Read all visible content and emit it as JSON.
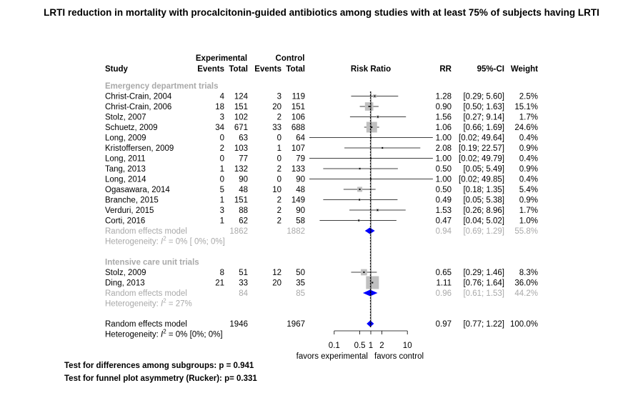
{
  "chart_data": {
    "type": "forest",
    "title": "LRTI reduction in mortality with procalcitonin-guided antibiotics among studies with at least 75% of subjects having LRTI",
    "group_labels": {
      "experimental": "Experimental",
      "control": "Control"
    },
    "columns": {
      "study": "Study",
      "exp_events": "Events",
      "exp_total": "Total",
      "ctrl_events": "Events",
      "ctrl_total": "Total",
      "plot": "Risk Ratio",
      "rr": "RR",
      "ci": "95%-CI",
      "weight": "Weight"
    },
    "scale": "log",
    "xlim": [
      0.1,
      10
    ],
    "xticks": [
      {
        "value": 0.1,
        "label": "0.1"
      },
      {
        "value": 0.5,
        "label": "0.5"
      },
      {
        "value": 1,
        "label": "1"
      },
      {
        "value": 2,
        "label": "2"
      },
      {
        "value": 10,
        "label": "10"
      }
    ],
    "xlabel_left": "favors experimental",
    "xlabel_right": "favors control",
    "subgroups": [
      {
        "name": "Emergency department trials",
        "studies": [
          {
            "study": "Christ-Crain, 2004",
            "exp_events": "4",
            "exp_total": "124",
            "ctrl_events": "3",
            "ctrl_total": "119",
            "rr": 1.28,
            "lo": 0.29,
            "hi": 5.6,
            "rr_text": "1.28",
            "ci_text": "[0.29;  5.60]",
            "weight": 2.5,
            "weight_text": "2.5%"
          },
          {
            "study": "Christ-Crain, 2006",
            "exp_events": "18",
            "exp_total": "151",
            "ctrl_events": "20",
            "ctrl_total": "151",
            "rr": 0.9,
            "lo": 0.5,
            "hi": 1.63,
            "rr_text": "0.90",
            "ci_text": "[0.50;  1.63]",
            "weight": 15.1,
            "weight_text": "15.1%"
          },
          {
            "study": "Stolz, 2007",
            "exp_events": "3",
            "exp_total": "102",
            "ctrl_events": "2",
            "ctrl_total": "106",
            "rr": 1.56,
            "lo": 0.27,
            "hi": 9.14,
            "rr_text": "1.56",
            "ci_text": "[0.27;  9.14]",
            "weight": 1.7,
            "weight_text": "1.7%"
          },
          {
            "study": "Schuetz, 2009",
            "exp_events": "34",
            "exp_total": "671",
            "ctrl_events": "33",
            "ctrl_total": "688",
            "rr": 1.06,
            "lo": 0.66,
            "hi": 1.69,
            "rr_text": "1.06",
            "ci_text": "[0.66;  1.69]",
            "weight": 24.6,
            "weight_text": "24.6%"
          },
          {
            "study": "Long, 2009",
            "exp_events": "0",
            "exp_total": "63",
            "ctrl_events": "0",
            "ctrl_total": "64",
            "rr": 1.0,
            "lo": 0.02,
            "hi": 49.64,
            "rr_text": "1.00",
            "ci_text": "[0.02; 49.64]",
            "weight": 0.4,
            "weight_text": "0.4%"
          },
          {
            "study": "Kristoffersen, 2009",
            "exp_events": "2",
            "exp_total": "103",
            "ctrl_events": "1",
            "ctrl_total": "107",
            "rr": 2.08,
            "lo": 0.19,
            "hi": 22.57,
            "rr_text": "2.08",
            "ci_text": "[0.19; 22.57]",
            "weight": 0.9,
            "weight_text": "0.9%"
          },
          {
            "study": "Long, 2011",
            "exp_events": "0",
            "exp_total": "77",
            "ctrl_events": "0",
            "ctrl_total": "79",
            "rr": 1.0,
            "lo": 0.02,
            "hi": 49.79,
            "rr_text": "1.00",
            "ci_text": "[0.02; 49.79]",
            "weight": 0.4,
            "weight_text": "0.4%"
          },
          {
            "study": "Tang, 2013",
            "exp_events": "1",
            "exp_total": "132",
            "ctrl_events": "2",
            "ctrl_total": "133",
            "rr": 0.5,
            "lo": 0.05,
            "hi": 5.49,
            "rr_text": "0.50",
            "ci_text": "[0.05;  5.49]",
            "weight": 0.9,
            "weight_text": "0.9%"
          },
          {
            "study": "Long, 2014",
            "exp_events": "0",
            "exp_total": "90",
            "ctrl_events": "0",
            "ctrl_total": "90",
            "rr": 1.0,
            "lo": 0.02,
            "hi": 49.85,
            "rr_text": "1.00",
            "ci_text": "[0.02; 49.85]",
            "weight": 0.4,
            "weight_text": "0.4%"
          },
          {
            "study": "Ogasawara, 2014",
            "exp_events": "5",
            "exp_total": "48",
            "ctrl_events": "10",
            "ctrl_total": "48",
            "rr": 0.5,
            "lo": 0.18,
            "hi": 1.35,
            "rr_text": "0.50",
            "ci_text": "[0.18;  1.35]",
            "weight": 5.4,
            "weight_text": "5.4%"
          },
          {
            "study": "Branche, 2015",
            "exp_events": "1",
            "exp_total": "151",
            "ctrl_events": "2",
            "ctrl_total": "149",
            "rr": 0.49,
            "lo": 0.05,
            "hi": 5.38,
            "rr_text": "0.49",
            "ci_text": "[0.05;  5.38]",
            "weight": 0.9,
            "weight_text": "0.9%"
          },
          {
            "study": "Verduri, 2015",
            "exp_events": "3",
            "exp_total": "88",
            "ctrl_events": "2",
            "ctrl_total": "90",
            "rr": 1.53,
            "lo": 0.26,
            "hi": 8.96,
            "rr_text": "1.53",
            "ci_text": "[0.26;  8.96]",
            "weight": 1.7,
            "weight_text": "1.7%"
          },
          {
            "study": "Corti, 2016",
            "exp_events": "1",
            "exp_total": "62",
            "ctrl_events": "2",
            "ctrl_total": "58",
            "rr": 0.47,
            "lo": 0.04,
            "hi": 5.02,
            "rr_text": "0.47",
            "ci_text": "[0.04;  5.02]",
            "weight": 1.0,
            "weight_text": "1.0%"
          }
        ],
        "pooled": {
          "label": "Random effects model",
          "exp_total": "1862",
          "ctrl_total": "1882",
          "rr": 0.94,
          "lo": 0.69,
          "hi": 1.29,
          "rr_text": "0.94",
          "ci_text": "[0.69;  1.29]",
          "weight_text": "55.8%"
        },
        "heterogeneity": {
          "prefix": "Heterogeneity: ",
          "symbol": "I",
          "sup": "2",
          "rest": " = 0% [ 0%; 0%]"
        }
      },
      {
        "name": "Intensive care unit trials",
        "studies": [
          {
            "study": "Stolz, 2009",
            "exp_events": "8",
            "exp_total": "51",
            "ctrl_events": "12",
            "ctrl_total": "50",
            "rr": 0.65,
            "lo": 0.29,
            "hi": 1.46,
            "rr_text": "0.65",
            "ci_text": "[0.29;  1.46]",
            "weight": 8.3,
            "weight_text": "8.3%"
          },
          {
            "study": "Ding, 2013",
            "exp_events": "21",
            "exp_total": "33",
            "ctrl_events": "20",
            "ctrl_total": "35",
            "rr": 1.11,
            "lo": 0.76,
            "hi": 1.64,
            "rr_text": "1.11",
            "ci_text": "[0.76;  1.64]",
            "weight": 36.0,
            "weight_text": "36.0%"
          }
        ],
        "pooled": {
          "label": "Random effects model",
          "exp_total": "84",
          "ctrl_total": "85",
          "rr": 0.96,
          "lo": 0.61,
          "hi": 1.53,
          "rr_text": "0.96",
          "ci_text": "[0.61;  1.53]",
          "weight_text": "44.2%"
        },
        "heterogeneity": {
          "prefix": "Heterogeneity: ",
          "symbol": "I",
          "sup": "2",
          "rest": " = 27%"
        }
      }
    ],
    "overall": {
      "label": "Random effects model",
      "exp_total": "1946",
      "ctrl_total": "1967",
      "rr": 0.97,
      "lo": 0.77,
      "hi": 1.22,
      "rr_text": "0.97",
      "ci_text": "[0.77;  1.22]",
      "weight_text": "100.0%",
      "heterogeneity": {
        "prefix": "Heterogeneity: ",
        "symbol": "I",
        "sup": "2",
        "rest": " = 0% [0%; 0%]"
      }
    },
    "tests": [
      "Test for differences among subgroups: p = 0.941",
      "Test for funnel plot asymmetry (Rucker): p= 0.331"
    ],
    "colors": {
      "text": "#000000",
      "muted": "#a9a9a9",
      "diamond": "#0000ff",
      "box": "#c0c0c0",
      "line": "#000000"
    }
  }
}
